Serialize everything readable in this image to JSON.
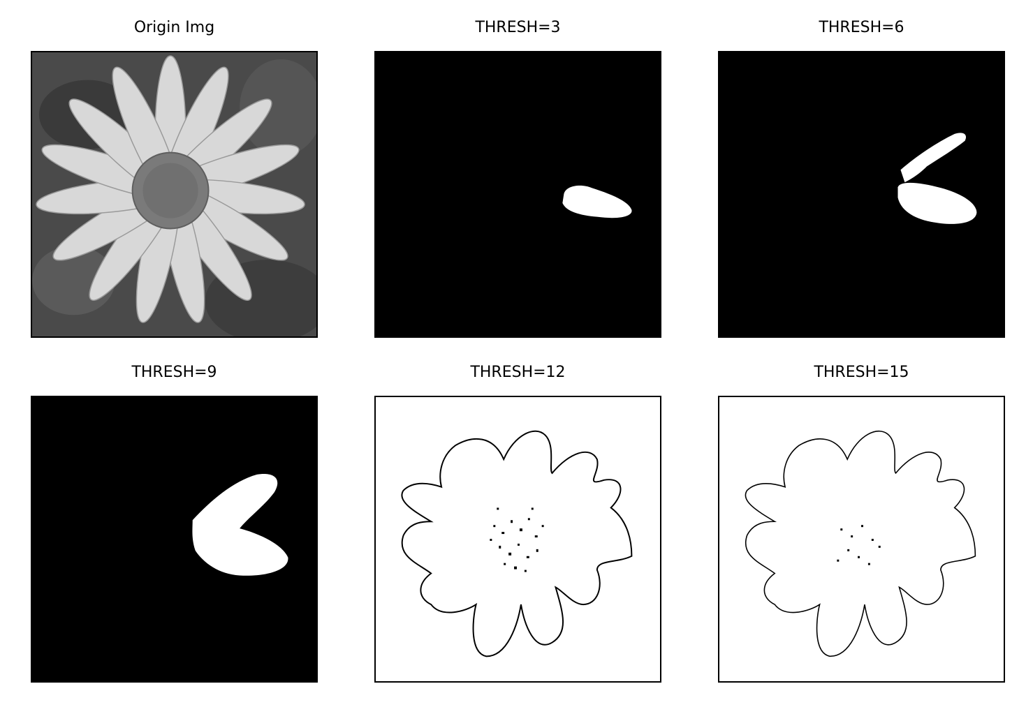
{
  "figure": {
    "panels": [
      {
        "title": "Origin Img",
        "kind": "grayscale-photo",
        "background": "#4a4a4a"
      },
      {
        "title": "THRESH=3",
        "kind": "binary-mask",
        "background": "#000000",
        "foreground": "#ffffff"
      },
      {
        "title": "THRESH=6",
        "kind": "binary-mask",
        "background": "#000000",
        "foreground": "#ffffff"
      },
      {
        "title": "THRESH=9",
        "kind": "binary-mask",
        "background": "#000000",
        "foreground": "#ffffff"
      },
      {
        "title": "THRESH=12",
        "kind": "binary-outline",
        "background": "#ffffff",
        "foreground": "#000000"
      },
      {
        "title": "THRESH=15",
        "kind": "binary-outline",
        "background": "#ffffff",
        "foreground": "#000000"
      }
    ]
  }
}
